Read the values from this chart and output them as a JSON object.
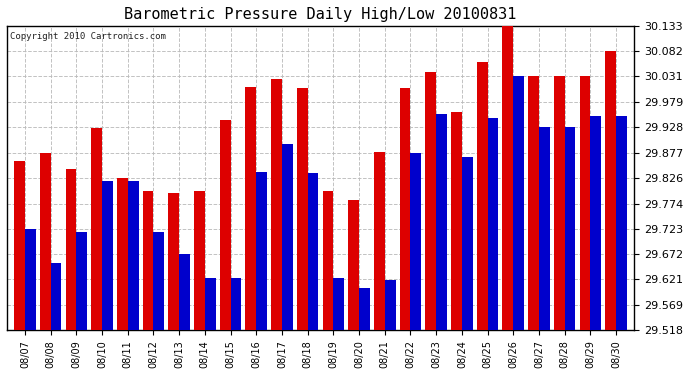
{
  "title": "Barometric Pressure Daily High/Low 20100831",
  "copyright": "Copyright 2010 Cartronics.com",
  "dates": [
    "08/07",
    "08/08",
    "08/09",
    "08/10",
    "08/11",
    "08/12",
    "08/13",
    "08/14",
    "08/15",
    "08/16",
    "08/17",
    "08/18",
    "08/19",
    "08/20",
    "08/21",
    "08/22",
    "08/23",
    "08/24",
    "08/25",
    "08/26",
    "08/27",
    "08/28",
    "08/29",
    "08/30"
  ],
  "highs": [
    29.86,
    29.877,
    29.843,
    29.926,
    29.826,
    29.8,
    29.796,
    29.8,
    29.942,
    30.01,
    30.025,
    30.007,
    29.8,
    29.782,
    29.878,
    30.008,
    30.04,
    29.96,
    30.06,
    30.133,
    30.031,
    30.031,
    30.031,
    30.082
  ],
  "lows": [
    29.723,
    29.655,
    29.716,
    29.82,
    29.82,
    29.716,
    29.672,
    29.623,
    29.623,
    29.838,
    29.895,
    29.836,
    29.623,
    29.603,
    29.62,
    29.877,
    29.956,
    29.869,
    29.947,
    30.031,
    29.928,
    29.928,
    29.951,
    29.951
  ],
  "high_color": "#dd0000",
  "low_color": "#0000cc",
  "ylim_min": 29.518,
  "ylim_max": 30.133,
  "yticks": [
    29.518,
    29.569,
    29.621,
    29.672,
    29.723,
    29.774,
    29.826,
    29.877,
    29.928,
    29.979,
    30.031,
    30.082,
    30.133
  ],
  "bg_color": "#ffffff",
  "plot_bg_color": "#ffffff",
  "grid_color": "#bbbbbb",
  "title_fontsize": 11,
  "bar_width": 0.42,
  "figwidth": 6.9,
  "figheight": 3.75,
  "dpi": 100
}
